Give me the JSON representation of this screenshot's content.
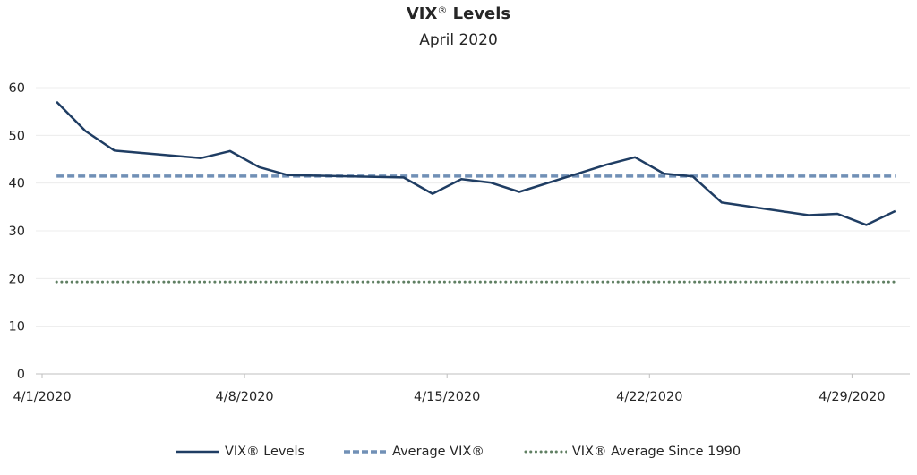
{
  "chart_data": {
    "type": "line",
    "title": "VIX® Levels",
    "title_main": "VIX",
    "title_reg": "®",
    "title_rest": "Levels",
    "subtitle": "April 2020",
    "xlabel": "",
    "ylabel": "",
    "ylim": [
      0,
      60
    ],
    "yticks": [
      "0",
      "10",
      "20",
      "30",
      "40",
      "50",
      "60"
    ],
    "xticks": [
      "4/1/2020",
      "4/8/2020",
      "4/15/2020",
      "4/22/2020",
      "4/29/2020"
    ],
    "xrange": [
      "4/1/2020",
      "4/30/2020"
    ],
    "grid": true,
    "legend_position": "bottom",
    "x": [
      "4/1/2020",
      "4/2/2020",
      "4/3/2020",
      "4/6/2020",
      "4/7/2020",
      "4/8/2020",
      "4/9/2020",
      "4/13/2020",
      "4/14/2020",
      "4/15/2020",
      "4/16/2020",
      "4/17/2020",
      "4/20/2020",
      "4/21/2020",
      "4/22/2020",
      "4/23/2020",
      "4/24/2020",
      "4/27/2020",
      "4/28/2020",
      "4/29/2020",
      "4/30/2020"
    ],
    "series": [
      {
        "name": "VIX® Levels",
        "style": "solid",
        "color": "#1f3d63",
        "values": [
          57.06,
          50.91,
          46.8,
          45.24,
          46.7,
          43.35,
          41.67,
          41.17,
          37.76,
          40.84,
          40.11,
          38.15,
          43.83,
          45.41,
          41.98,
          41.38,
          35.93,
          33.29,
          33.57,
          31.23,
          34.15
        ]
      },
      {
        "name": "Average VIX®",
        "style": "dashed",
        "color": "#7190b6",
        "constant": 41.45
      },
      {
        "name": "VIX® Average Since 1990",
        "style": "dotted",
        "color": "#5f7f62",
        "constant": 19.3
      }
    ]
  }
}
